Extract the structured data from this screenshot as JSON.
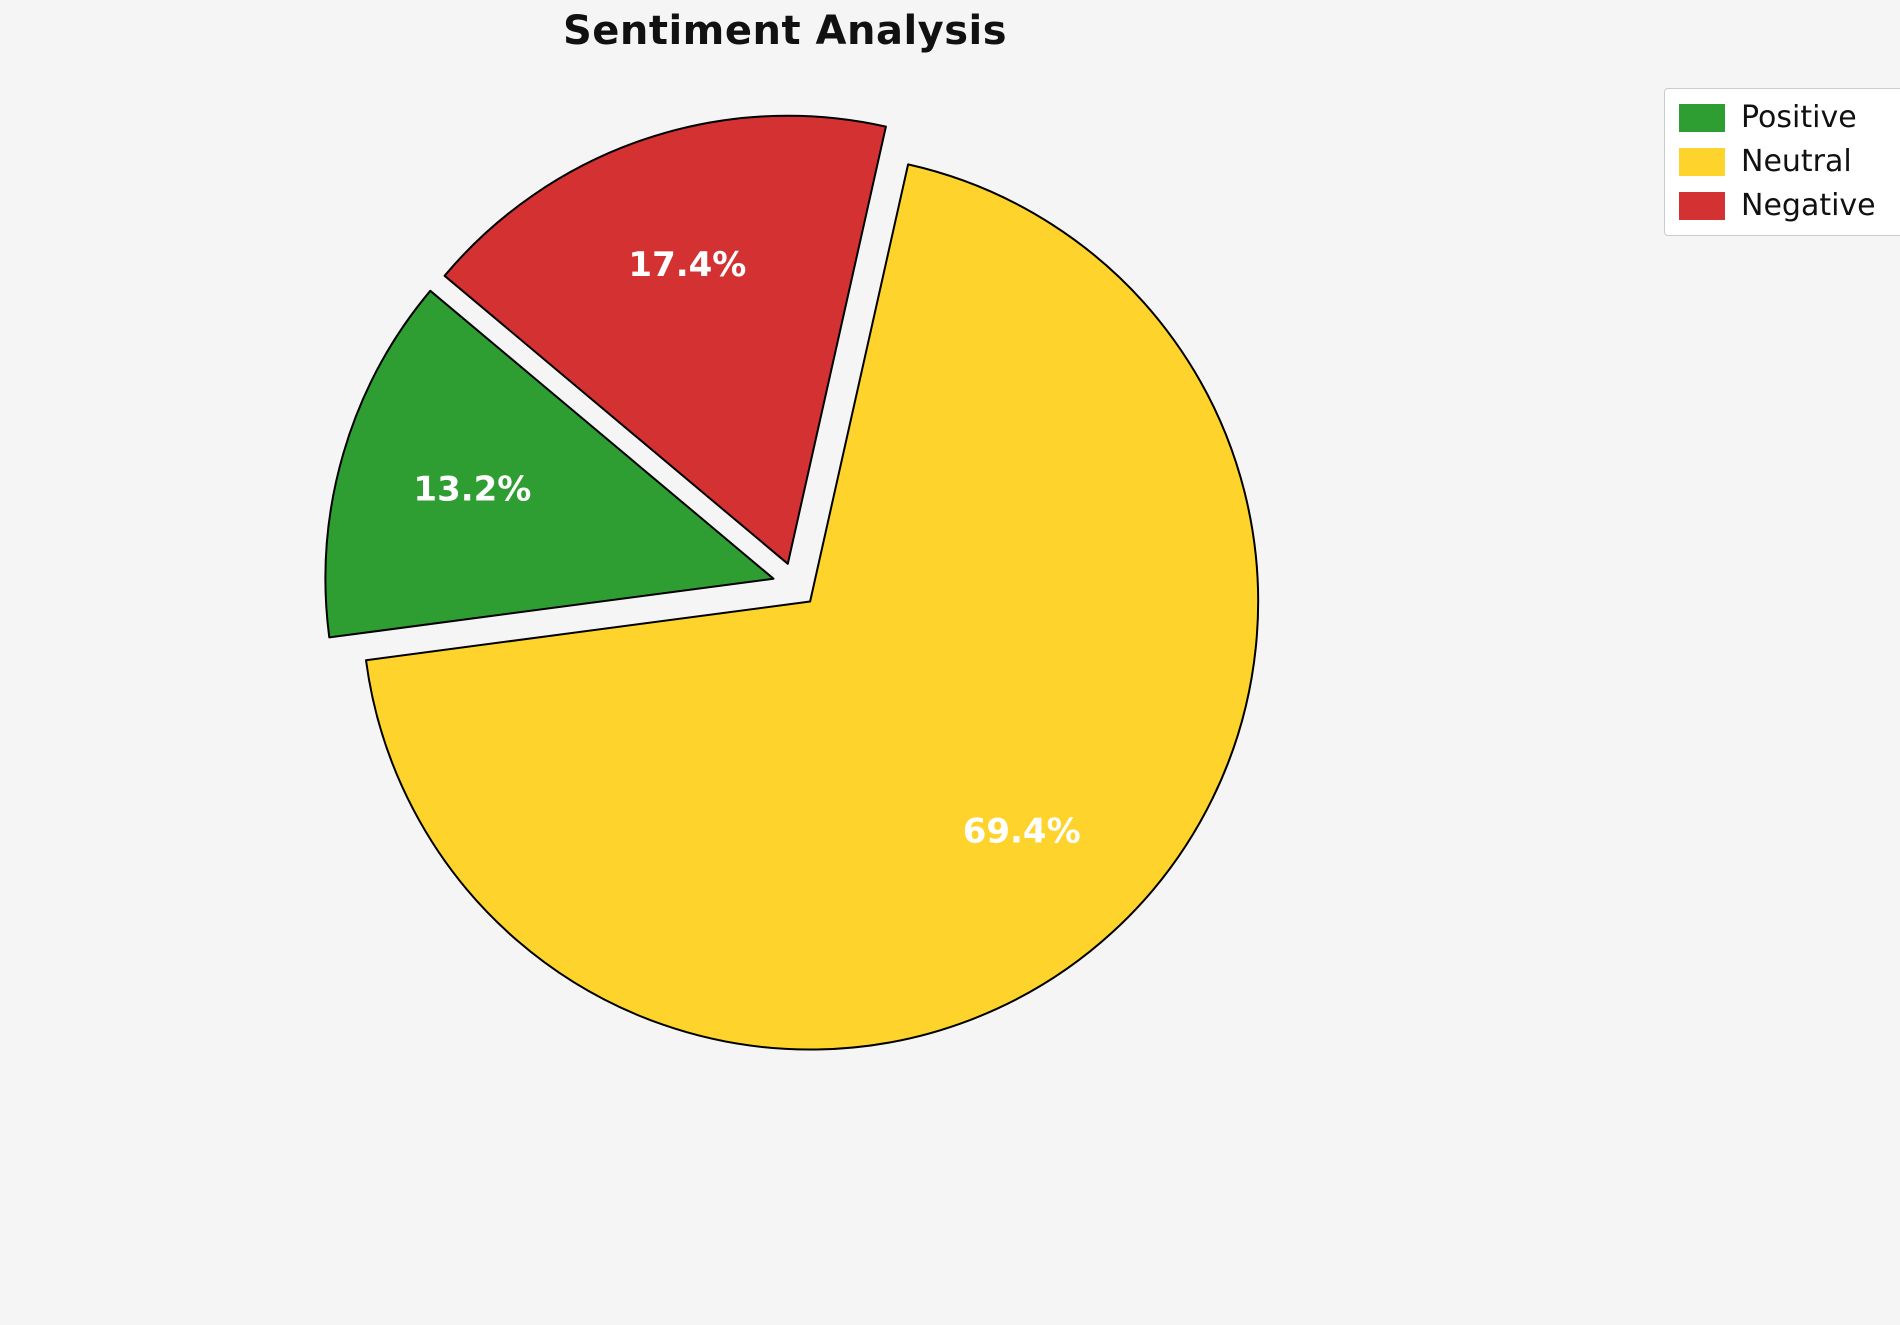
{
  "chart_data": {
    "type": "pie",
    "title": "Sentiment Analysis",
    "labels": [
      "Positive",
      "Neutral",
      "Negative"
    ],
    "values": [
      13.2,
      69.4,
      17.4
    ],
    "percent_labels": [
      "13.2%",
      "69.4%",
      "17.4%"
    ],
    "colors": [
      "#2e9e33",
      "#fdd32c",
      "#d43232"
    ],
    "edge_color": "#000000",
    "edge_width": 2,
    "label_color": "#ffffff",
    "background": "#f5f5f5",
    "legend_position": "upper right",
    "start_angle_deg": 140,
    "counterclockwise": true,
    "explode": 0.05,
    "pct_distance": 0.7
  }
}
